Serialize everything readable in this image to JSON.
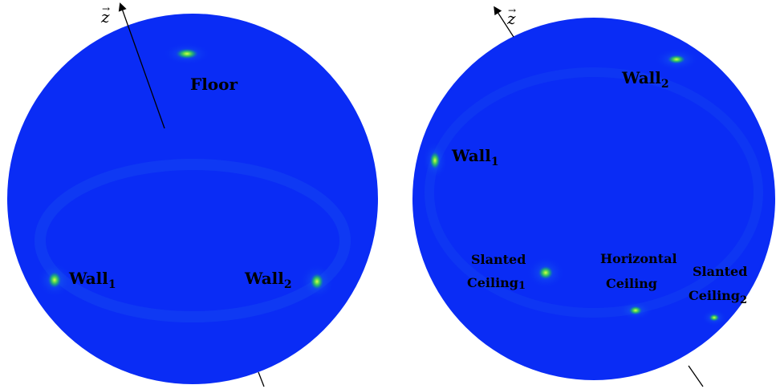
{
  "colors": {
    "sphere": "#0a2cf5",
    "sphere_edge": "#0a2bd8",
    "cluster_core": "#b6f03a",
    "cluster_mid": "#1fd05a",
    "cluster_halo": "#0f74e6",
    "axis_line": "#000000",
    "label": "#000000"
  },
  "left_sphere": {
    "axis_label": "z",
    "labels": {
      "floor": "Floor",
      "wall1": "Wall",
      "wall1_sub": "1",
      "wall2": "Wall",
      "wall2_sub": "2"
    }
  },
  "right_sphere": {
    "axis_label": "z",
    "labels": {
      "wall1": "Wall",
      "wall1_sub": "1",
      "wall2": "Wall",
      "wall2_sub": "2",
      "slanted1_line1": "Slanted",
      "slanted1_line2": "Ceiling",
      "slanted1_sub": "1",
      "horizontal_line1": "Horizontal",
      "horizontal_line2": "Ceiling",
      "slanted2_line1": "Slanted",
      "slanted2_line2": "Ceiling",
      "slanted2_sub": "2"
    }
  }
}
